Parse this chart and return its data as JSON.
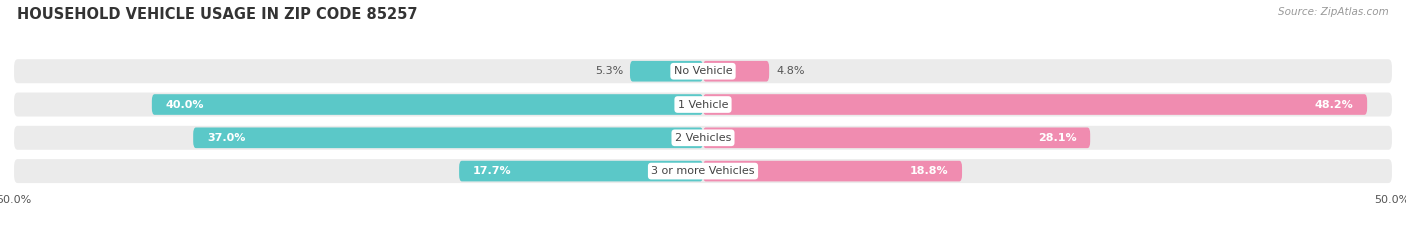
{
  "title": "HOUSEHOLD VEHICLE USAGE IN ZIP CODE 85257",
  "source": "Source: ZipAtlas.com",
  "categories": [
    "No Vehicle",
    "1 Vehicle",
    "2 Vehicles",
    "3 or more Vehicles"
  ],
  "owner_values": [
    5.3,
    40.0,
    37.0,
    17.7
  ],
  "renter_values": [
    4.8,
    48.2,
    28.1,
    18.8
  ],
  "max_val": 50.0,
  "owner_color": "#5BC8C8",
  "renter_color": "#F08CB0",
  "bar_bg_color": "#EBEBEB",
  "bar_height": 0.62,
  "bar_gap": 0.18,
  "title_fontsize": 10.5,
  "label_fontsize": 8.0,
  "value_fontsize": 8.0,
  "tick_fontsize": 8.0,
  "source_fontsize": 7.5,
  "legend_fontsize": 8.0
}
